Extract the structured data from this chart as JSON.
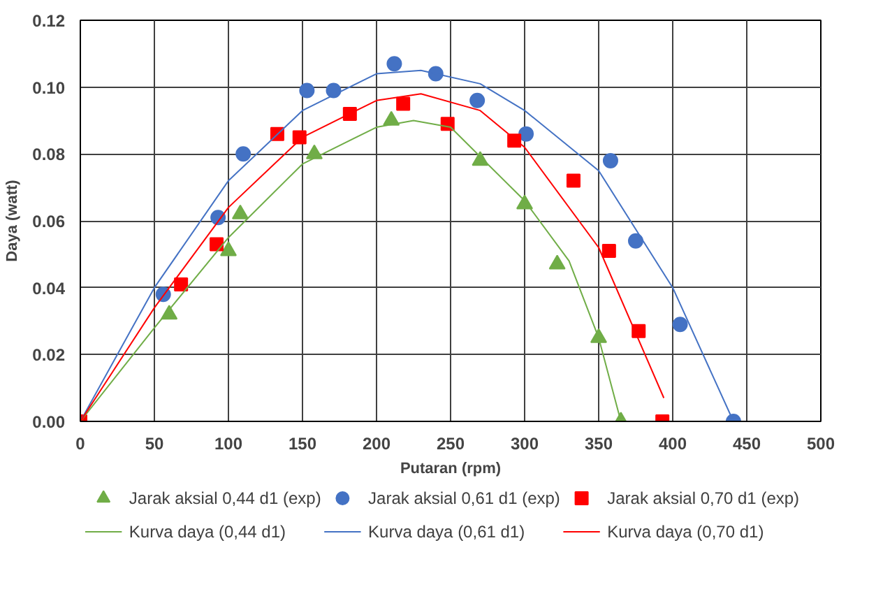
{
  "chart_data": {
    "type": "scatter",
    "xlabel": "Putaran (rpm)",
    "ylabel": "Daya (watt)",
    "xlim": [
      0,
      500
    ],
    "ylim": [
      0,
      0.12
    ],
    "xticks": [
      0,
      50,
      100,
      150,
      200,
      250,
      300,
      350,
      400,
      450,
      500
    ],
    "yticks": [
      {
        "value": 0,
        "label": "0.00"
      },
      {
        "value": 0.02,
        "label": "0.02"
      },
      {
        "value": 0.04,
        "label": "0.04"
      },
      {
        "value": 0.06,
        "label": "0.06"
      },
      {
        "value": 0.08,
        "label": "0.08"
      },
      {
        "value": 0.1,
        "label": "0.10"
      },
      {
        "value": 0.12,
        "label": "0.12"
      }
    ],
    "grid": true,
    "legend": "bottom",
    "series": [
      {
        "name": "Jarak aksial 0,44 d1 (exp)",
        "marker": "triangle",
        "color": "#70ad47",
        "x": [
          60,
          100,
          108,
          158,
          210,
          270,
          300,
          322,
          350,
          365
        ],
        "values": [
          0.032,
          0.051,
          0.062,
          0.08,
          0.09,
          0.078,
          0.065,
          0.047,
          0.025,
          0
        ]
      },
      {
        "name": "Jarak aksial 0,61 d1 (exp)",
        "marker": "circle",
        "color": "#4472c4",
        "x": [
          56,
          93,
          110,
          153,
          171,
          212,
          240,
          268,
          301,
          358,
          375,
          405,
          441
        ],
        "values": [
          0.038,
          0.061,
          0.08,
          0.099,
          0.099,
          0.107,
          0.104,
          0.096,
          0.086,
          0.078,
          0.054,
          0.029,
          0
        ]
      },
      {
        "name": "Jarak aksial 0,70 d1 (exp)",
        "marker": "square",
        "color": "#ff0000",
        "x": [
          0,
          68,
          92,
          133,
          148,
          182,
          218,
          248,
          293,
          333,
          357,
          377,
          393
        ],
        "values": [
          0,
          0.041,
          0.053,
          0.086,
          0.085,
          0.092,
          0.095,
          0.089,
          0.084,
          0.072,
          0.051,
          0.027,
          0
        ]
      },
      {
        "name": "Kurva daya (0,44 d1)",
        "type": "line",
        "color": "#70ad47",
        "x": [
          0,
          50,
          100,
          150,
          200,
          225,
          250,
          300,
          330,
          350,
          365
        ],
        "values": [
          0,
          0.028,
          0.055,
          0.077,
          0.088,
          0.09,
          0.088,
          0.066,
          0.048,
          0.025,
          0
        ]
      },
      {
        "name": "Kurva daya (0,61 d1)",
        "type": "line",
        "color": "#4472c4",
        "x": [
          0,
          50,
          100,
          150,
          200,
          230,
          270,
          300,
          350,
          400,
          441
        ],
        "values": [
          0,
          0.04,
          0.072,
          0.093,
          0.104,
          0.105,
          0.101,
          0.093,
          0.075,
          0.04,
          0
        ]
      },
      {
        "name": "Kurva daya (0,70 d1)",
        "type": "line",
        "color": "#ff0000",
        "x": [
          0,
          50,
          100,
          150,
          200,
          230,
          270,
          300,
          350,
          394
        ],
        "values": [
          0,
          0.034,
          0.064,
          0.085,
          0.096,
          0.098,
          0.093,
          0.082,
          0.052,
          0.007
        ]
      }
    ]
  }
}
